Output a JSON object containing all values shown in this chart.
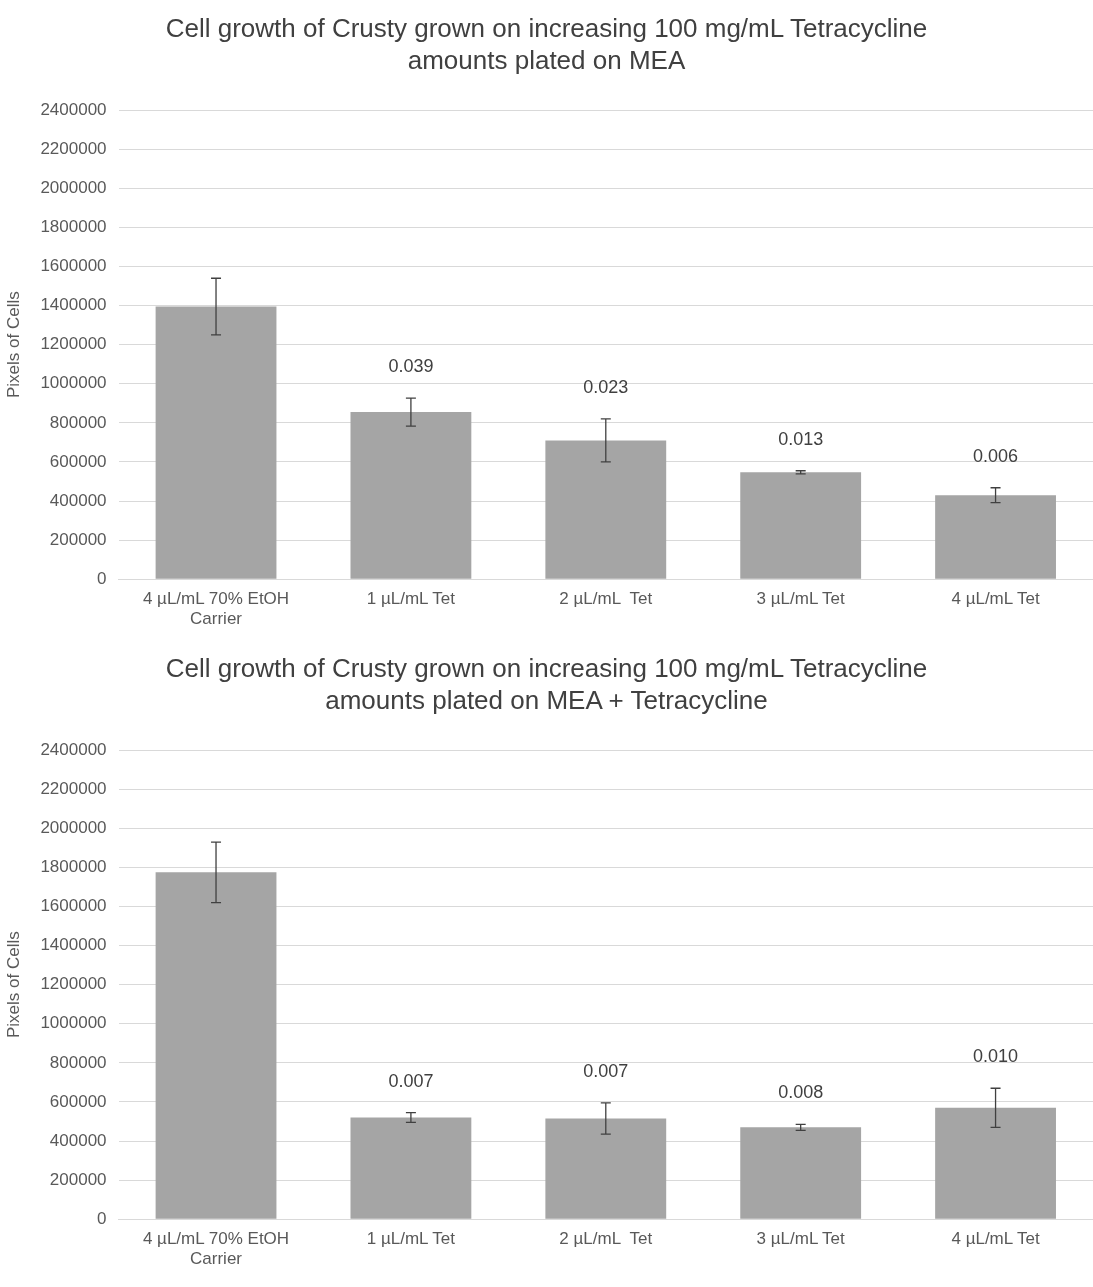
{
  "chart_data": [
    {
      "type": "bar",
      "title": "Cell growth of Crusty grown on increasing 100 mg/mL Tetracycline amounts plated on MEA",
      "ylabel": "Pixels of Cells",
      "categories": [
        "4 µL/mL 70% EtOH Carrier",
        "1 µL/mL Tet",
        "2 µL/mL  Tet",
        "3 µL/mL Tet",
        "4 µL/mL Tet"
      ],
      "values": [
        1395000,
        855000,
        710000,
        547000,
        430000
      ],
      "errors": [
        145000,
        72000,
        110000,
        8000,
        38000
      ],
      "color": "#a5a5a5",
      "ylim": [
        0,
        2400000
      ],
      "yticks": [
        0,
        200000,
        400000,
        600000,
        800000,
        1000000,
        1200000,
        1400000,
        1600000,
        1800000,
        2000000,
        2200000,
        2400000
      ],
      "grid": "y",
      "legend": false,
      "annotations": [
        {
          "text": "0.039",
          "x": "1 µL/mL Tet",
          "y": 855000
        },
        {
          "text": "0.023",
          "x": "2 µL/mL  Tet",
          "y": 710000
        },
        {
          "text": "0.013",
          "x": "3 µL/mL Tet",
          "y": 547000
        },
        {
          "text": "0.006",
          "x": "4 µL/mL Tet",
          "y": 430000
        }
      ]
    },
    {
      "type": "bar",
      "title": "Cell growth of Crusty grown on increasing 100 mg/mL Tetracycline amounts plated on MEA + Tetracycline",
      "ylabel": "Pixels of Cells",
      "categories": [
        "4 µL/mL 70% EtOH Carrier",
        "1 µL/mL Tet",
        "2 µL/mL  Tet",
        "3 µL/mL Tet",
        "4 µL/mL Tet"
      ],
      "values": [
        1775000,
        520000,
        515000,
        470000,
        570000
      ],
      "errors": [
        155000,
        25000,
        80000,
        15000,
        100000
      ],
      "color": "#a5a5a5",
      "ylim": [
        0,
        2400000
      ],
      "yticks": [
        0,
        200000,
        400000,
        600000,
        800000,
        1000000,
        1200000,
        1400000,
        1600000,
        1800000,
        2000000,
        2200000,
        2400000
      ],
      "grid": "y",
      "legend": false,
      "annotations": [
        {
          "text": "0.007",
          "x": "1 µL/mL Tet",
          "y": 520000
        },
        {
          "text": "0.007",
          "x": "2 µL/mL  Tet",
          "y": 515000
        },
        {
          "text": "0.008",
          "x": "3 µL/mL Tet",
          "y": 470000
        },
        {
          "text": "0.010",
          "x": "4 µL/mL Tet",
          "y": 570000
        }
      ]
    }
  ]
}
